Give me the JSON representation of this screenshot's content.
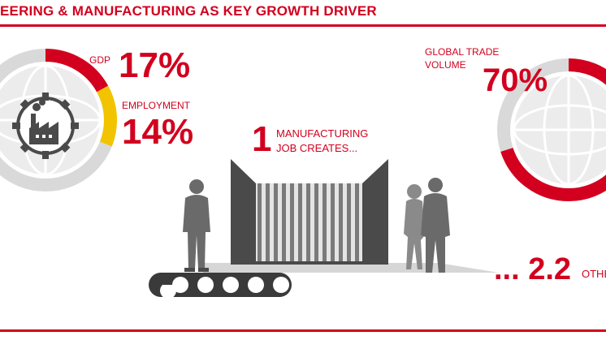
{
  "title": "EERING & MANUFACTURING AS KEY GROWTH DRIVER",
  "colors": {
    "accent": "#d2001e",
    "yellow": "#f2c400",
    "grey_ring": "#d9d9d9",
    "dark": "#4a4a4a"
  },
  "left_globe": {
    "icon": "factory-gear-icon",
    "gdp": {
      "label": "GDP",
      "value": "17%",
      "share": 0.17
    },
    "employment": {
      "label": "EMPLOYMENT",
      "value": "14%",
      "share": 0.14
    }
  },
  "center": {
    "count": "1",
    "caption_line1": "MANUFACTURING",
    "caption_line2": "JOB CREATES..."
  },
  "right_globe": {
    "label_line1": "GLOBAL TRADE",
    "label_line2": "VOLUME",
    "value": "70%",
    "share": 0.7
  },
  "bottom_right": {
    "value": "... 2.2",
    "label": "OTHE"
  }
}
